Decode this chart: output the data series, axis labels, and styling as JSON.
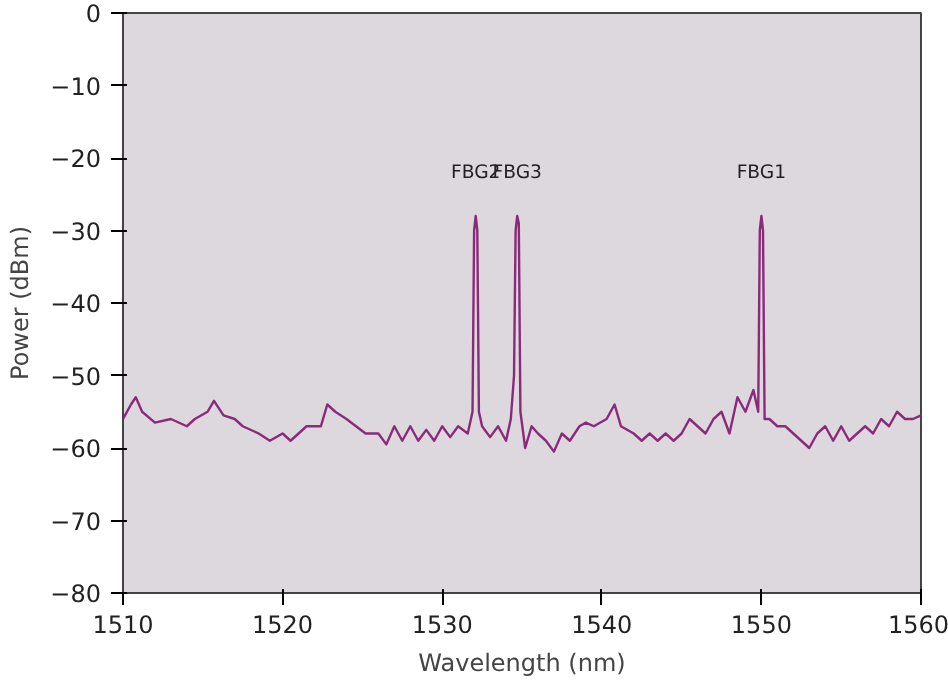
{
  "chart_data": {
    "type": "line",
    "xlabel": "Wavelength (nm)",
    "ylabel": "Power (dBm)",
    "x": [
      1510,
      1510.5,
      1510.8,
      1511.2,
      1512,
      1513,
      1514,
      1514.5,
      1515.3,
      1515.7,
      1516.3,
      1517,
      1517.5,
      1518.5,
      1519.2,
      1520,
      1520.5,
      1521.5,
      1522.4,
      1522.8,
      1523.3,
      1524,
      1524.6,
      1525.2,
      1526,
      1526.5,
      1527,
      1527.5,
      1528,
      1528.5,
      1529,
      1529.5,
      1530,
      1530.5,
      1531,
      1531.6,
      1531.9,
      1532,
      1532.1,
      1532.2,
      1532.3,
      1532.5,
      1533,
      1533.5,
      1534,
      1534.3,
      1534.5,
      1534.6,
      1534.7,
      1534.8,
      1534.9,
      1535.2,
      1535.6,
      1536,
      1536.5,
      1537,
      1537.5,
      1538,
      1538.6,
      1539,
      1539.5,
      1540.3,
      1540.8,
      1541.2,
      1542,
      1542.5,
      1543,
      1543.5,
      1544,
      1544.5,
      1545,
      1545.5,
      1546,
      1546.5,
      1547,
      1547.5,
      1548,
      1548.5,
      1549,
      1549.5,
      1549.8,
      1549.9,
      1550,
      1550.1,
      1550.2,
      1550.5,
      1551,
      1551.5,
      1552,
      1552.5,
      1553,
      1553.5,
      1554,
      1554.5,
      1555,
      1555.5,
      1556,
      1556.5,
      1557,
      1557.5,
      1558,
      1558.5,
      1559,
      1559.5,
      1560
    ],
    "series": [
      {
        "color": "#8b2a7a",
        "values": [
          -56,
          -54,
          -53,
          -55,
          -56.5,
          -56,
          -57,
          -56,
          -55,
          -53.5,
          -55.5,
          -56,
          -57,
          -58,
          -59,
          -58,
          -59,
          -57,
          -57,
          -54,
          -55,
          -56,
          -57,
          -58,
          -58,
          -59.5,
          -57,
          -59,
          -57,
          -59,
          -57.5,
          -59,
          -57,
          -58.5,
          -57,
          -58,
          -55,
          -30,
          -28,
          -30,
          -55,
          -57,
          -58.5,
          -57,
          -59,
          -56,
          -50,
          -30,
          -28,
          -29,
          -55,
          -60,
          -57,
          -58,
          -59,
          -60.5,
          -58,
          -59,
          -57,
          -56.5,
          -57,
          -56,
          -54,
          -57,
          -58,
          -59,
          -58,
          -59,
          -58,
          -59,
          -58,
          -56,
          -57,
          -58,
          -56,
          -55,
          -58,
          -53,
          -55,
          -52,
          -55,
          -30,
          -28,
          -30,
          -56,
          -56,
          -57,
          -57,
          -58,
          -59,
          -60,
          -58,
          -57,
          -59,
          -57,
          -59,
          -58,
          -57,
          -58,
          -56,
          -57,
          -55,
          -56,
          -56,
          -55.5
        ]
      }
    ],
    "xlim": [
      1510,
      1560
    ],
    "xticks": [
      1510,
      1520,
      1530,
      1540,
      1550,
      1560
    ],
    "ylim": [
      -80,
      0
    ],
    "yticks": [
      -80,
      -70,
      -60,
      -50,
      -40,
      -30,
      -20,
      -10,
      0
    ],
    "grid": false,
    "annotations": [
      {
        "text": "FBG2",
        "x": 1532.1,
        "y": -28
      },
      {
        "text": "FBG3",
        "x": 1534.7,
        "y": -28
      },
      {
        "text": "FBG1",
        "x": 1550,
        "y": -28
      }
    ]
  }
}
